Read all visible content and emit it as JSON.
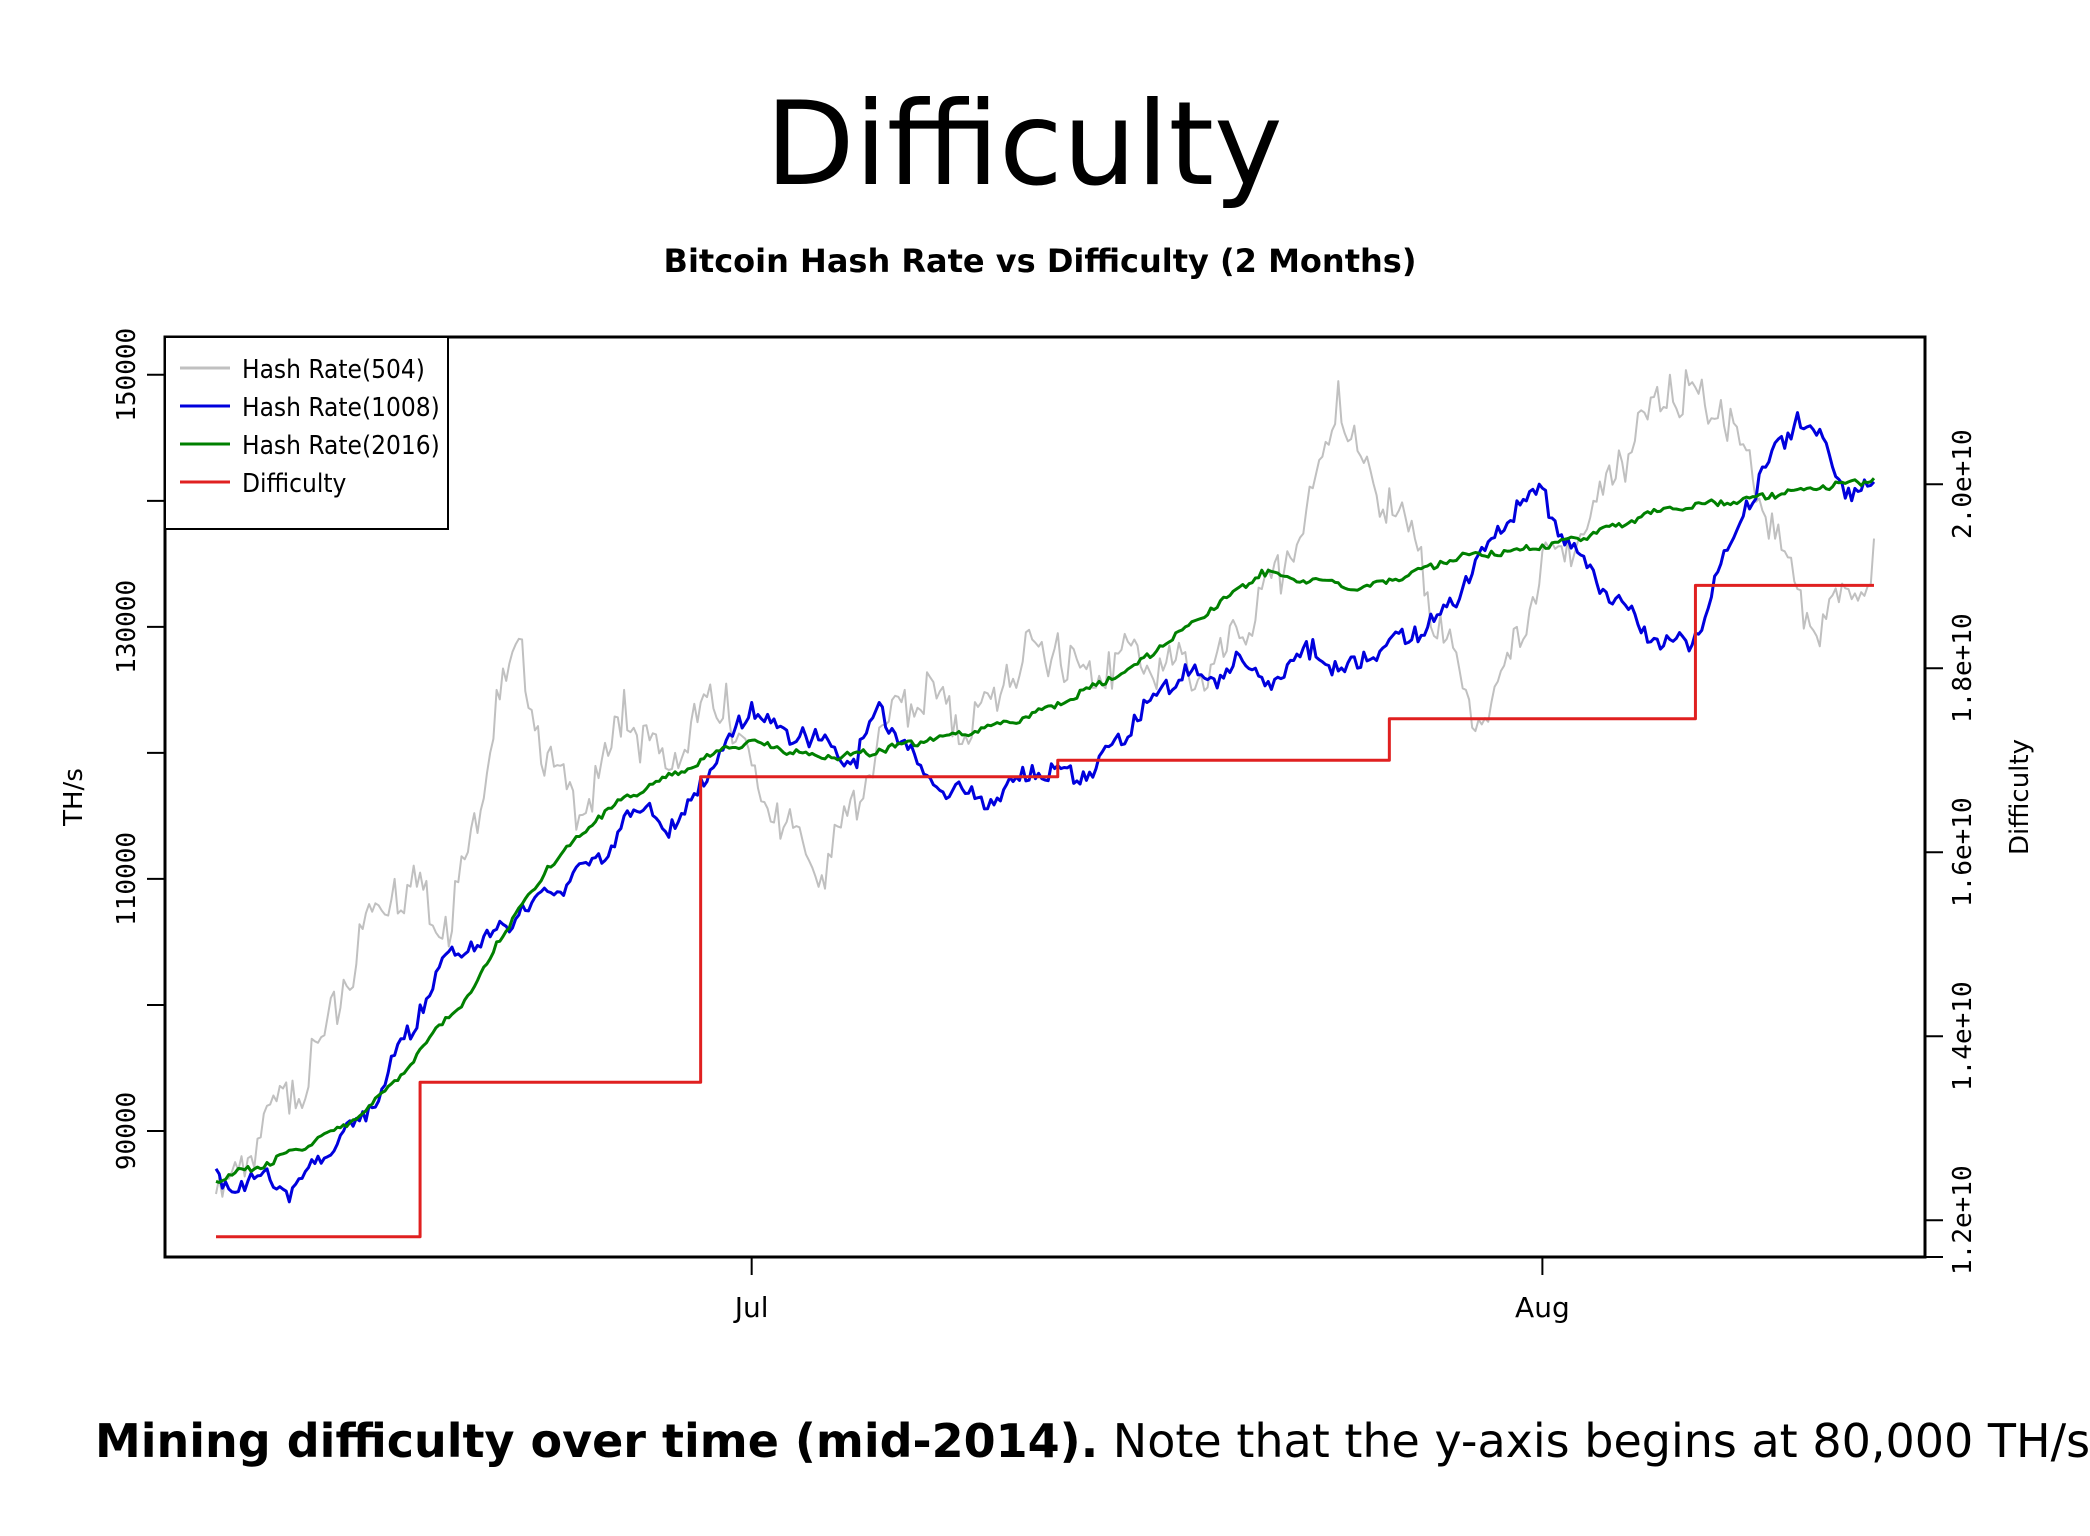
{
  "slide": {
    "title": "Difficulty",
    "caption_bold": "Mining difficulty over time (mid-2014).",
    "caption_rest": " Note that the y-axis begins at 80,000 TH/s"
  },
  "chart_data": {
    "type": "line",
    "title": "Bitcoin Hash Rate vs Difficulty (2 Months)",
    "ylabel": "TH/s",
    "y2label": "Difficulty",
    "xlim": [
      "2014-06-08",
      "2014-08-16"
    ],
    "ylim": [
      80000,
      153000
    ],
    "y2lim": [
      11600000000,
      21600000000
    ],
    "x_ticks": [
      {
        "date": "2014-07-01",
        "label": "Jul"
      },
      {
        "date": "2014-08-01",
        "label": "Aug"
      }
    ],
    "y_ticks": [
      {
        "value": 90000,
        "label": "90000"
      },
      {
        "value": 100000,
        "label": ""
      },
      {
        "value": 110000,
        "label": "110000"
      },
      {
        "value": 120000,
        "label": ""
      },
      {
        "value": 130000,
        "label": "130000"
      },
      {
        "value": 140000,
        "label": ""
      },
      {
        "value": 150000,
        "label": "150000"
      }
    ],
    "y2_ticks": [
      {
        "value": 11600000000,
        "label": ""
      },
      {
        "value": 12000000000,
        "label": "1.2e+10"
      },
      {
        "value": 14000000000,
        "label": "1.4e+10"
      },
      {
        "value": 16000000000,
        "label": "1.6e+10"
      },
      {
        "value": 18000000000,
        "label": "1.8e+10"
      },
      {
        "value": 20000000000,
        "label": "2.0e+10"
      }
    ],
    "legend": {
      "position": "top-left",
      "entries": [
        {
          "label": "Hash Rate(504)",
          "color": "#c0c0c0"
        },
        {
          "label": "Hash Rate(1008)",
          "color": "#0000dd"
        },
        {
          "label": "Hash Rate(2016)",
          "color": "#008000"
        },
        {
          "label": "Difficulty",
          "color": "#e02020"
        }
      ]
    },
    "series": [
      {
        "color": "#c0c0c0",
        "axis": "left",
        "points": [
          [
            "2014-06-10",
            85000
          ],
          [
            "2014-06-11",
            88000
          ],
          [
            "2014-06-12",
            92000
          ],
          [
            "2014-06-13",
            94000
          ],
          [
            "2014-06-14",
            97000
          ],
          [
            "2014-06-15",
            102000
          ],
          [
            "2014-06-16",
            108000
          ],
          [
            "2014-06-17",
            110000
          ],
          [
            "2014-06-18",
            110500
          ],
          [
            "2014-06-19",
            107000
          ],
          [
            "2014-06-20",
            114000
          ],
          [
            "2014-06-21",
            125000
          ],
          [
            "2014-06-22",
            129000
          ],
          [
            "2014-06-23",
            120000
          ],
          [
            "2014-06-24",
            117000
          ],
          [
            "2014-06-25",
            118000
          ],
          [
            "2014-06-26",
            125000
          ],
          [
            "2014-06-27",
            121000
          ],
          [
            "2014-06-28",
            120000
          ],
          [
            "2014-06-29",
            124000
          ],
          [
            "2014-06-30",
            125500
          ],
          [
            "2014-07-01",
            119000
          ],
          [
            "2014-07-02",
            116000
          ],
          [
            "2014-07-03",
            113000
          ],
          [
            "2014-07-04",
            112000
          ],
          [
            "2014-07-05",
            117000
          ],
          [
            "2014-07-06",
            122000
          ],
          [
            "2014-07-07",
            125000
          ],
          [
            "2014-07-08",
            126000
          ],
          [
            "2014-07-09",
            123000
          ],
          [
            "2014-07-10",
            124000
          ],
          [
            "2014-07-11",
            127000
          ],
          [
            "2014-07-12",
            129000
          ],
          [
            "2014-07-13",
            129500
          ],
          [
            "2014-07-14",
            127000
          ],
          [
            "2014-07-15",
            128000
          ],
          [
            "2014-07-16",
            129000
          ],
          [
            "2014-07-17",
            127500
          ],
          [
            "2014-07-18",
            128000
          ],
          [
            "2014-07-19",
            127000
          ],
          [
            "2014-07-20",
            130000
          ],
          [
            "2014-07-21",
            133000
          ],
          [
            "2014-07-22",
            136000
          ],
          [
            "2014-07-23",
            141000
          ],
          [
            "2014-07-24",
            149500
          ],
          [
            "2014-07-25",
            143000
          ],
          [
            "2014-07-26",
            141000
          ],
          [
            "2014-07-27",
            137000
          ],
          [
            "2014-07-28",
            131000
          ],
          [
            "2014-07-29",
            125000
          ],
          [
            "2014-07-30",
            124000
          ],
          [
            "2014-07-31",
            130000
          ],
          [
            "2014-08-01",
            136000
          ],
          [
            "2014-08-02",
            137000
          ],
          [
            "2014-08-03",
            140000
          ],
          [
            "2014-08-04",
            144000
          ],
          [
            "2014-08-05",
            147000
          ],
          [
            "2014-08-06",
            150000
          ],
          [
            "2014-08-07",
            149000
          ],
          [
            "2014-08-08",
            148000
          ],
          [
            "2014-08-09",
            144000
          ],
          [
            "2014-08-10",
            139000
          ],
          [
            "2014-08-11",
            133000
          ],
          [
            "2014-08-12",
            131000
          ],
          [
            "2014-08-13",
            133000
          ],
          [
            "2014-08-14",
            137000
          ]
        ]
      },
      {
        "color": "#0000dd",
        "axis": "left",
        "points": [
          [
            "2014-06-10",
            87000
          ],
          [
            "2014-06-11",
            86000
          ],
          [
            "2014-06-12",
            87000
          ],
          [
            "2014-06-13",
            85500
          ],
          [
            "2014-06-14",
            88000
          ],
          [
            "2014-06-15",
            90000
          ],
          [
            "2014-06-16",
            92000
          ],
          [
            "2014-06-17",
            96000
          ],
          [
            "2014-06-18",
            100000
          ],
          [
            "2014-06-19",
            104000
          ],
          [
            "2014-06-20",
            105000
          ],
          [
            "2014-06-21",
            106000
          ],
          [
            "2014-06-22",
            108000
          ],
          [
            "2014-06-23",
            109000
          ],
          [
            "2014-06-24",
            110500
          ],
          [
            "2014-06-25",
            112000
          ],
          [
            "2014-06-26",
            115000
          ],
          [
            "2014-06-27",
            116000
          ],
          [
            "2014-06-28",
            114000
          ],
          [
            "2014-06-29",
            118000
          ],
          [
            "2014-06-30",
            121000
          ],
          [
            "2014-07-01",
            124000
          ],
          [
            "2014-07-02",
            122000
          ],
          [
            "2014-07-03",
            122000
          ],
          [
            "2014-07-04",
            121000
          ],
          [
            "2014-07-05",
            119500
          ],
          [
            "2014-07-06",
            124000
          ],
          [
            "2014-07-07",
            121000
          ],
          [
            "2014-07-08",
            118000
          ],
          [
            "2014-07-09",
            117500
          ],
          [
            "2014-07-10",
            116500
          ],
          [
            "2014-07-11",
            117500
          ],
          [
            "2014-07-12",
            119000
          ],
          [
            "2014-07-13",
            119000
          ],
          [
            "2014-07-14",
            118500
          ],
          [
            "2014-07-15",
            120500
          ],
          [
            "2014-07-16",
            123000
          ],
          [
            "2014-07-17",
            125000
          ],
          [
            "2014-07-18",
            127000
          ],
          [
            "2014-07-19",
            126000
          ],
          [
            "2014-07-20",
            128000
          ],
          [
            "2014-07-21",
            126000
          ],
          [
            "2014-07-22",
            127000
          ],
          [
            "2014-07-23",
            129000
          ],
          [
            "2014-07-24",
            126500
          ],
          [
            "2014-07-25",
            128000
          ],
          [
            "2014-07-26",
            129000
          ],
          [
            "2014-07-27",
            130000
          ],
          [
            "2014-07-28",
            131000
          ],
          [
            "2014-07-29",
            134000
          ],
          [
            "2014-07-30",
            137000
          ],
          [
            "2014-07-31",
            140000
          ],
          [
            "2014-08-01",
            141000
          ],
          [
            "2014-08-02",
            137000
          ],
          [
            "2014-08-03",
            134500
          ],
          [
            "2014-08-04",
            132500
          ],
          [
            "2014-08-05",
            130000
          ],
          [
            "2014-08-06",
            129000
          ],
          [
            "2014-08-07",
            129500
          ],
          [
            "2014-08-08",
            135000
          ],
          [
            "2014-08-09",
            140000
          ],
          [
            "2014-08-10",
            144000
          ],
          [
            "2014-08-11",
            147000
          ],
          [
            "2014-08-12",
            145000
          ],
          [
            "2014-08-13",
            141000
          ],
          [
            "2014-08-14",
            141500
          ]
        ]
      },
      {
        "color": "#008000",
        "axis": "left",
        "points": [
          [
            "2014-06-10",
            86000
          ],
          [
            "2014-06-11",
            87000
          ],
          [
            "2014-06-12",
            87500
          ],
          [
            "2014-06-13",
            88500
          ],
          [
            "2014-06-14",
            89500
          ],
          [
            "2014-06-15",
            90500
          ],
          [
            "2014-06-16",
            92000
          ],
          [
            "2014-06-17",
            94000
          ],
          [
            "2014-06-18",
            96500
          ],
          [
            "2014-06-19",
            99000
          ],
          [
            "2014-06-20",
            101000
          ],
          [
            "2014-06-21",
            105000
          ],
          [
            "2014-06-22",
            108000
          ],
          [
            "2014-06-23",
            111000
          ],
          [
            "2014-06-24",
            113000
          ],
          [
            "2014-06-25",
            115000
          ],
          [
            "2014-06-26",
            116500
          ],
          [
            "2014-06-27",
            117500
          ],
          [
            "2014-06-28",
            118500
          ],
          [
            "2014-06-29",
            119500
          ],
          [
            "2014-06-30",
            120500
          ],
          [
            "2014-07-01",
            121000
          ],
          [
            "2014-07-02",
            120500
          ],
          [
            "2014-07-03",
            120000
          ],
          [
            "2014-07-04",
            119800
          ],
          [
            "2014-07-05",
            120000
          ],
          [
            "2014-07-06",
            120300
          ],
          [
            "2014-07-07",
            120800
          ],
          [
            "2014-07-08",
            121200
          ],
          [
            "2014-07-09",
            121500
          ],
          [
            "2014-07-10",
            122000
          ],
          [
            "2014-07-11",
            122500
          ],
          [
            "2014-07-12",
            123200
          ],
          [
            "2014-07-13",
            124000
          ],
          [
            "2014-07-14",
            125000
          ],
          [
            "2014-07-15",
            126000
          ],
          [
            "2014-07-16",
            127000
          ],
          [
            "2014-07-17",
            128500
          ],
          [
            "2014-07-18",
            130000
          ],
          [
            "2014-07-19",
            131500
          ],
          [
            "2014-07-20",
            133000
          ],
          [
            "2014-07-21",
            134500
          ],
          [
            "2014-07-22",
            134000
          ],
          [
            "2014-07-23",
            133800
          ],
          [
            "2014-07-24",
            133500
          ],
          [
            "2014-07-25",
            133200
          ],
          [
            "2014-07-26",
            133800
          ],
          [
            "2014-07-27",
            134500
          ],
          [
            "2014-07-28",
            135200
          ],
          [
            "2014-07-29",
            135800
          ],
          [
            "2014-07-30",
            136000
          ],
          [
            "2014-07-31",
            136200
          ],
          [
            "2014-08-01",
            136500
          ],
          [
            "2014-08-02",
            137000
          ],
          [
            "2014-08-03",
            137500
          ],
          [
            "2014-08-04",
            138200
          ],
          [
            "2014-08-05",
            139000
          ],
          [
            "2014-08-06",
            139500
          ],
          [
            "2014-08-07",
            139800
          ],
          [
            "2014-08-08",
            140000
          ],
          [
            "2014-08-09",
            140300
          ],
          [
            "2014-08-10",
            140600
          ],
          [
            "2014-08-11",
            140900
          ],
          [
            "2014-08-12",
            141200
          ],
          [
            "2014-08-13",
            141500
          ],
          [
            "2014-08-14",
            141800
          ]
        ]
      },
      {
        "color": "#e02020",
        "axis": "right",
        "step": true,
        "points": [
          [
            "2014-06-10",
            11820000000
          ],
          [
            "2014-06-18",
            13500000000
          ],
          [
            "2014-06-29",
            16820000000
          ],
          [
            "2014-07-13",
            17000000000
          ],
          [
            "2014-07-26",
            17450000000
          ],
          [
            "2014-08-07",
            18900000000
          ],
          [
            "2014-08-14",
            18900000000
          ]
        ]
      }
    ]
  }
}
